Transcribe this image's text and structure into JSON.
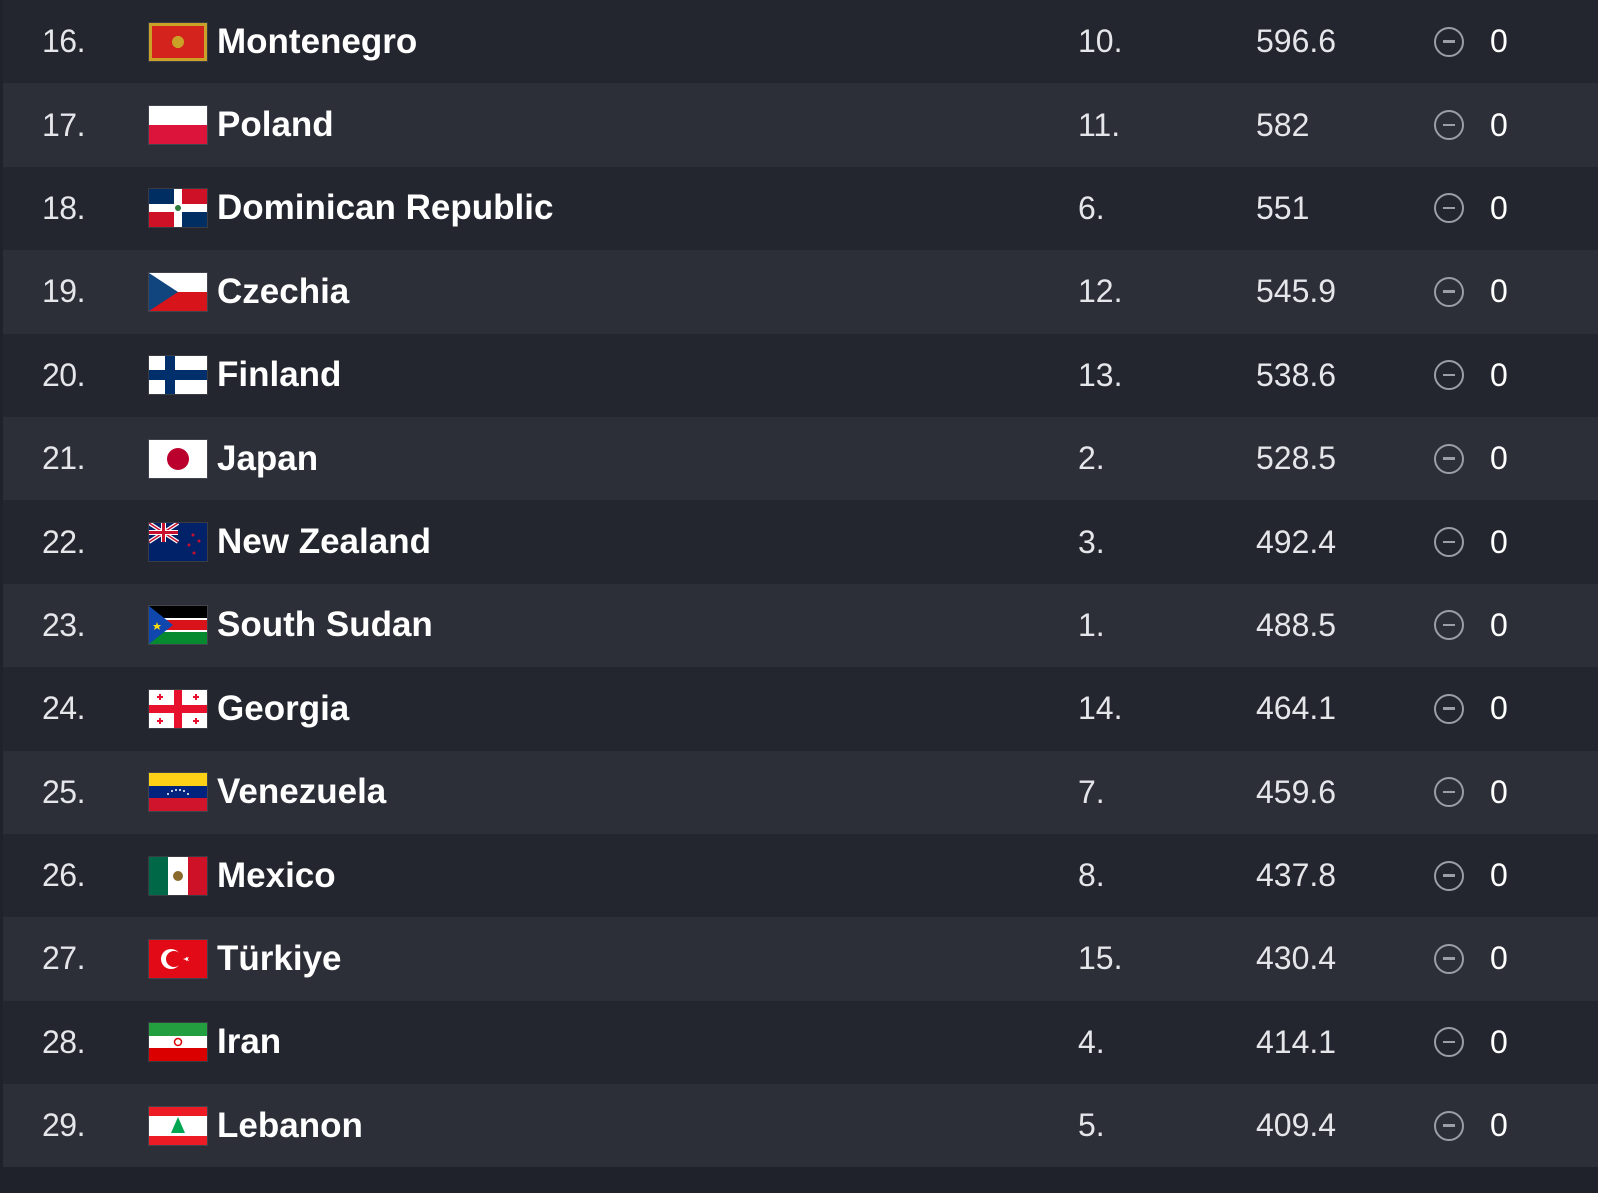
{
  "rows": [
    {
      "rank": "16.",
      "country": "Montenegro",
      "flag": "montenegro-flag-icon",
      "zone_rank": "10.",
      "points": "596.6",
      "change": "0"
    },
    {
      "rank": "17.",
      "country": "Poland",
      "flag": "poland-flag-icon",
      "zone_rank": "11.",
      "points": "582",
      "change": "0"
    },
    {
      "rank": "18.",
      "country": "Dominican Republic",
      "flag": "dominican-republic-flag-icon",
      "zone_rank": "6.",
      "points": "551",
      "change": "0"
    },
    {
      "rank": "19.",
      "country": "Czechia",
      "flag": "czechia-flag-icon",
      "zone_rank": "12.",
      "points": "545.9",
      "change": "0"
    },
    {
      "rank": "20.",
      "country": "Finland",
      "flag": "finland-flag-icon",
      "zone_rank": "13.",
      "points": "538.6",
      "change": "0"
    },
    {
      "rank": "21.",
      "country": "Japan",
      "flag": "japan-flag-icon",
      "zone_rank": "2.",
      "points": "528.5",
      "change": "0"
    },
    {
      "rank": "22.",
      "country": "New Zealand",
      "flag": "new-zealand-flag-icon",
      "zone_rank": "3.",
      "points": "492.4",
      "change": "0"
    },
    {
      "rank": "23.",
      "country": "South Sudan",
      "flag": "south-sudan-flag-icon",
      "zone_rank": "1.",
      "points": "488.5",
      "change": "0"
    },
    {
      "rank": "24.",
      "country": "Georgia",
      "flag": "georgia-flag-icon",
      "zone_rank": "14.",
      "points": "464.1",
      "change": "0"
    },
    {
      "rank": "25.",
      "country": "Venezuela",
      "flag": "venezuela-flag-icon",
      "zone_rank": "7.",
      "points": "459.6",
      "change": "0"
    },
    {
      "rank": "26.",
      "country": "Mexico",
      "flag": "mexico-flag-icon",
      "zone_rank": "8.",
      "points": "437.8",
      "change": "0"
    },
    {
      "rank": "27.",
      "country": "Türkiye",
      "flag": "turkiye-flag-icon",
      "zone_rank": "15.",
      "points": "430.4",
      "change": "0"
    },
    {
      "rank": "28.",
      "country": "Iran",
      "flag": "iran-flag-icon",
      "zone_rank": "4.",
      "points": "414.1",
      "change": "0"
    },
    {
      "rank": "29.",
      "country": "Lebanon",
      "flag": "lebanon-flag-icon",
      "zone_rank": "5.",
      "points": "409.4",
      "change": "0"
    }
  ],
  "colors": {
    "row_dark": "#23262e",
    "row_light": "#2c2f38",
    "text": "#ffffff",
    "muted_text": "#e4e6ea",
    "icon": "#9a9ea8"
  },
  "change_icon": "no-change-icon"
}
